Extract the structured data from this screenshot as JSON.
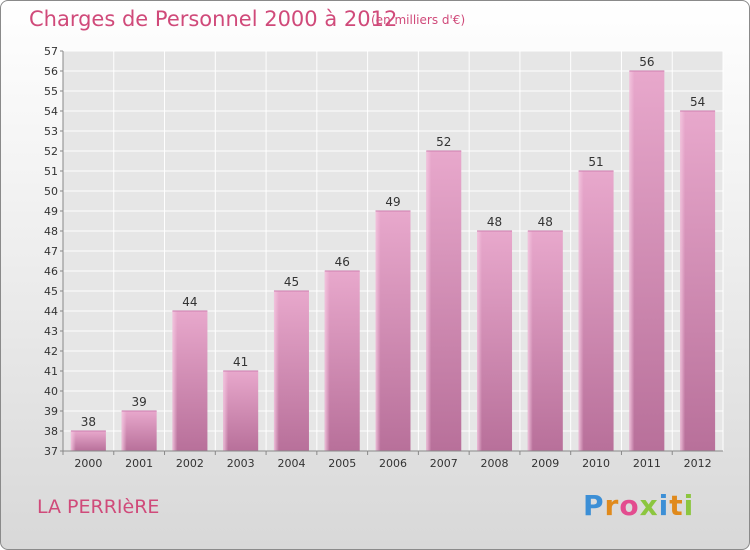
{
  "header": {
    "title": "Charges de Personnel 2000 à 2012",
    "subtitle": "(en milliers d'€)"
  },
  "footer": {
    "town": "LA PERRIèRE",
    "logo": {
      "letters": [
        "P",
        "r",
        "o",
        "x",
        "i",
        "t",
        "i"
      ],
      "colors": [
        "#3c8fd6",
        "#e08a1c",
        "#e34c8f",
        "#8cc63f",
        "#3c8fd6",
        "#e08a1c",
        "#8cc63f"
      ]
    }
  },
  "chart_data": {
    "type": "bar",
    "categories": [
      "2000",
      "2001",
      "2002",
      "2003",
      "2004",
      "2005",
      "2006",
      "2007",
      "2008",
      "2009",
      "2010",
      "2011",
      "2012"
    ],
    "values": [
      38,
      39,
      44,
      41,
      45,
      46,
      49,
      52,
      48,
      48,
      51,
      56,
      54
    ],
    "ylim": [
      37,
      57
    ],
    "yticks": [
      37,
      38,
      39,
      40,
      41,
      42,
      43,
      44,
      45,
      46,
      47,
      48,
      49,
      50,
      51,
      52,
      53,
      54,
      55,
      56,
      57
    ],
    "grid": true,
    "bar_color": "#d889b3",
    "label_color": "#333333"
  }
}
